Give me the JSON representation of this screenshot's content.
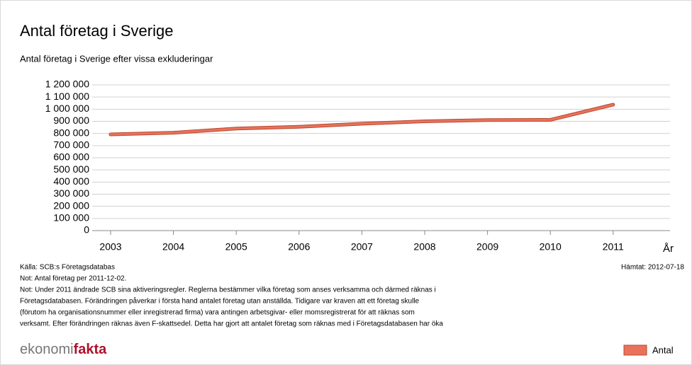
{
  "chart_data": {
    "type": "line",
    "title": "Antal företag i Sverige",
    "subtitle": "Antal företag i Sverige efter vissa exkluderingar",
    "x_label": "År",
    "categories": [
      "2003",
      "2004",
      "2005",
      "2006",
      "2007",
      "2008",
      "2009",
      "2010",
      "2011"
    ],
    "series": [
      {
        "name": "Antal",
        "color": "#e8735a",
        "values": [
          792000,
          806000,
          840000,
          855000,
          880000,
          900000,
          910000,
          912000,
          1037000
        ]
      }
    ],
    "ylim": [
      0,
      1200000
    ],
    "yticks": [
      0,
      {
        "value": 100000,
        "label": "100 000"
      },
      {
        "value": 200000,
        "label": "200 000"
      },
      {
        "value": 300000,
        "label": "300 000"
      },
      {
        "value": 400000,
        "label": "400 000"
      },
      {
        "value": 500000,
        "label": "500 000"
      },
      {
        "value": 600000,
        "label": "600 000"
      },
      {
        "value": 700000,
        "label": "700 000"
      },
      {
        "value": 800000,
        "label": "800 000"
      },
      {
        "value": 900000,
        "label": "900 000"
      },
      {
        "value": 1000000,
        "label": "1 000 000"
      },
      {
        "value": 1100000,
        "label": "1 100 000"
      },
      {
        "value": 1200000,
        "label": "1 200 000"
      }
    ],
    "grid": true,
    "legend": "bottom-right"
  },
  "footer": {
    "source": "Källa: SCB:s Företagsdatabas",
    "fetched": "Hämtat: 2012-07-18",
    "notes": [
      "Not: Antal företag per 2011-12-02.",
      "Not: Under 2011 ändrade SCB sina aktiveringsregler. Reglerna bestämmer vilka företag som anses verksamma och därmed räknas i",
      "Företagsdatabasen. Förändringen påverkar i första hand antalet företag utan anställda. Tidigare var kraven att ett företag skulle",
      "(förutom ha organisationsnummer eller inregistrerad firma) vara antingen arbetsgivar- eller momsregistrerat för att räknas som",
      "verksamt. Efter förändringen räknas även F-skattsedel. Detta har gjort att antalet företag som räknas med i Företagsdatabasen har  öka"
    ],
    "logo": [
      "ekonomi",
      "fakta"
    ]
  }
}
